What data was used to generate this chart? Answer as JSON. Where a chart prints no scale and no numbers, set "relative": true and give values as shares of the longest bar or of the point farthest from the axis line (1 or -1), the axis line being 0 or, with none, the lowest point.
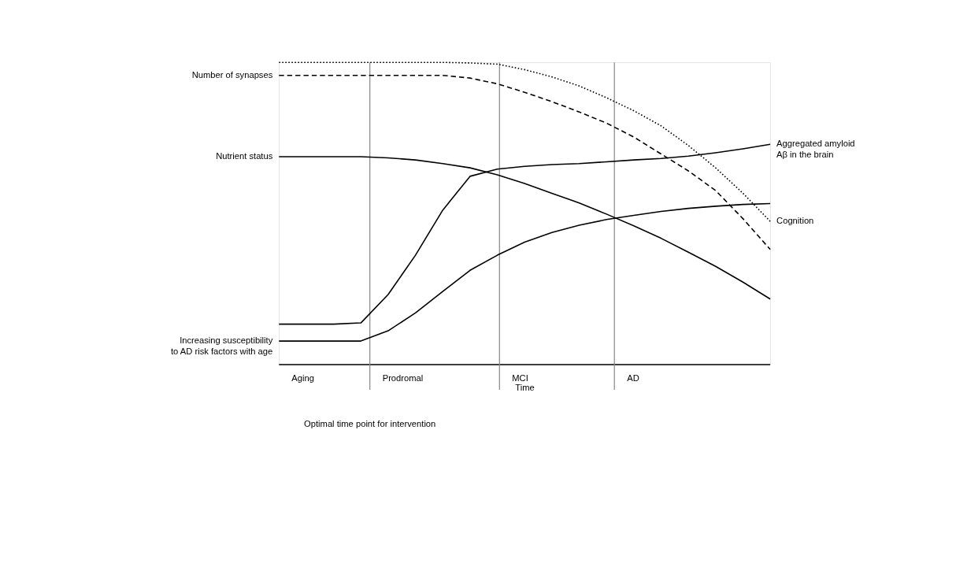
{
  "chart_data": {
    "type": "line",
    "relative": true,
    "xlabel": "Time",
    "tick_labels": false,
    "grid": false,
    "categories": [
      null,
      null,
      null,
      null,
      null,
      null,
      null,
      null,
      null,
      null,
      null,
      null,
      null,
      null,
      null,
      null,
      null,
      null,
      null
    ],
    "series": [
      {
        "name": "Number of synapses",
        "color": "#000000",
        "line_style": "dashed",
        "values": [
          0.957,
          0.957,
          0.957,
          0.957,
          0.957,
          0.957,
          0.957,
          0.948,
          0.929,
          0.901,
          0.87,
          0.836,
          0.799,
          0.753,
          0.697,
          0.641,
          0.576,
          0.483,
          0.381
        ]
      },
      {
        "name": "Nutrient status",
        "color": "#000000",
        "line_style": "solid",
        "values": [
          0.688,
          0.688,
          0.688,
          0.688,
          0.684,
          0.677,
          0.665,
          0.651,
          0.628,
          0.599,
          0.567,
          0.535,
          0.498,
          0.459,
          0.418,
          0.372,
          0.325,
          0.273,
          0.217
        ]
      },
      {
        "name": "Increasing susceptibility to AD risk factors with age",
        "color": "#000000",
        "line_style": "solid",
        "values": [
          0.078,
          0.078,
          0.078,
          0.078,
          0.112,
          0.171,
          0.242,
          0.312,
          0.362,
          0.405,
          0.437,
          0.461,
          0.48,
          0.494,
          0.507,
          0.517,
          0.524,
          0.53,
          0.533
        ]
      },
      {
        "name": "Aggregated amyloid Aβ in the brain",
        "color": "#000000",
        "line_style": "solid",
        "values": [
          0.134,
          0.134,
          0.134,
          0.138,
          0.232,
          0.362,
          0.511,
          0.623,
          0.647,
          0.656,
          0.662,
          0.665,
          0.671,
          0.677,
          0.682,
          0.69,
          0.701,
          0.714,
          0.729
        ]
      },
      {
        "name": "Cognition",
        "color": "#000000",
        "line_style": "dotted",
        "values": [
          1.0,
          1.0,
          1.0,
          1.0,
          1.0,
          1.0,
          1.0,
          0.998,
          0.994,
          0.976,
          0.952,
          0.922,
          0.883,
          0.84,
          0.79,
          0.725,
          0.651,
          0.567,
          0.474
        ]
      }
    ],
    "annotations": [
      "Aging",
      "Prodromal",
      "MCI",
      "AD",
      "Optimal time point for intervention"
    ]
  }
}
